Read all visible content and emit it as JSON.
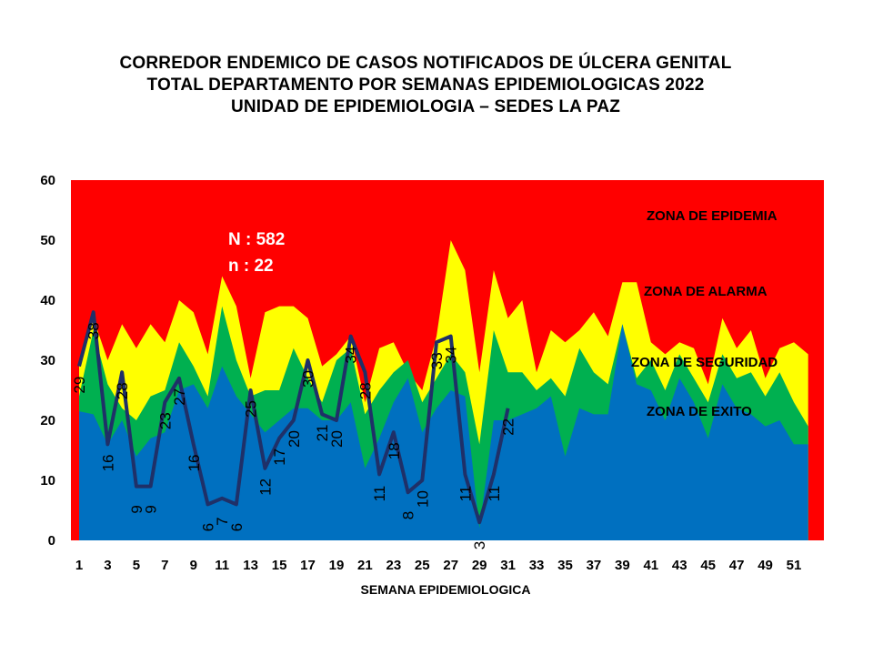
{
  "title_lines": [
    "CORREDOR ENDEMICO  DE CASOS NOTIFICADOS  DE ÚLCERA GENITAL",
    "TOTAL DEPARTAMENTO  POR SEMANAS EPIDEMIOLOGICAS  2022",
    "UNIDAD  DE EPIDEMIOLOGIA  – SEDES LA PAZ"
  ],
  "annotations": {
    "N": "N : 582",
    "n": "n : 22"
  },
  "zones": {
    "epidemia": "ZONA DE EPIDEMIA",
    "alarma": "ZONA DE ALARMA",
    "seguridad": "ZONA DE  SEGURIDAD",
    "exito": "ZONA DE  EXITO"
  },
  "colors": {
    "epidemia": "#ff0000",
    "alarma": "#ffff00",
    "seguridad": "#00b050",
    "exito": "#0070c0",
    "cases_line": "#1f3068"
  },
  "chart_data": {
    "type": "area",
    "xlabel": "SEMANA EPIDEMIOLOGICA",
    "ylabel": "",
    "ylim": [
      0,
      60
    ],
    "yticks": [
      0,
      10,
      20,
      30,
      40,
      50,
      60
    ],
    "x": [
      1,
      2,
      3,
      4,
      5,
      6,
      7,
      8,
      9,
      10,
      11,
      12,
      13,
      14,
      15,
      16,
      17,
      18,
      19,
      20,
      21,
      22,
      23,
      24,
      25,
      26,
      27,
      28,
      29,
      30,
      31,
      32,
      33,
      34,
      35,
      36,
      37,
      38,
      39,
      40,
      41,
      42,
      43,
      44,
      45,
      46,
      47,
      48,
      49,
      50,
      51,
      52
    ],
    "xtick_labels": [
      "1",
      "3",
      "5",
      "7",
      "9",
      "11",
      "13",
      "15",
      "17",
      "19",
      "21",
      "23",
      "25",
      "27",
      "29",
      "31",
      "33",
      "35",
      "37",
      "39",
      "41",
      "43",
      "45",
      "47",
      "49",
      "51"
    ],
    "bands": [
      {
        "name": "ZONA DE  EXITO",
        "values": [
          21.5,
          21,
          16,
          20,
          14,
          17,
          18,
          25,
          26,
          22,
          29,
          24,
          21,
          18,
          20,
          22,
          22,
          20,
          20,
          23,
          12,
          17,
          23,
          27,
          18,
          22,
          25,
          24,
          2,
          20,
          20,
          21,
          22,
          24,
          14,
          22,
          21,
          21,
          36,
          26,
          25,
          20,
          27,
          23,
          17,
          26,
          22,
          21,
          19,
          20,
          16,
          16
        ]
      },
      {
        "name": "ZONA DE  SEGURIDAD",
        "values": [
          24,
          35,
          26,
          22,
          20,
          24,
          25,
          33,
          29,
          24,
          39,
          30,
          24,
          25,
          25,
          32,
          27,
          23,
          30,
          32,
          21,
          25,
          28,
          30,
          23,
          27,
          31,
          28,
          16,
          35,
          28,
          28,
          25,
          27,
          24,
          32,
          28,
          26,
          36,
          27,
          30,
          25,
          31,
          27,
          23,
          31,
          27,
          28,
          24,
          28,
          23,
          19
        ]
      },
      {
        "name": "ZONA DE ALARMA",
        "values": [
          30,
          37,
          30,
          36,
          32,
          36,
          33,
          40,
          38,
          31,
          44,
          39,
          27,
          38,
          39,
          39,
          37,
          29,
          31,
          34,
          23,
          32,
          33,
          28,
          25,
          34,
          50,
          45,
          28,
          45,
          37,
          40,
          28,
          35,
          33,
          35,
          38,
          34,
          43,
          43,
          33,
          31,
          33,
          32,
          26,
          37,
          32,
          35,
          27,
          32,
          33,
          31
        ]
      }
    ],
    "series": [
      {
        "name": "",
        "x": [
          1,
          2,
          3,
          4,
          5,
          6,
          7,
          8,
          9,
          10,
          11,
          12,
          13,
          14,
          15,
          16,
          17,
          18,
          19,
          20,
          21,
          22,
          23,
          24,
          25,
          26,
          27,
          28,
          29,
          30,
          31
        ],
        "values": [
          29,
          38,
          16,
          28,
          9,
          9,
          23,
          27,
          16,
          6,
          7,
          6,
          25,
          12,
          17,
          20,
          30,
          21,
          20,
          34,
          28,
          11,
          18,
          8,
          10,
          33,
          34,
          11,
          3,
          11,
          22
        ]
      }
    ]
  }
}
